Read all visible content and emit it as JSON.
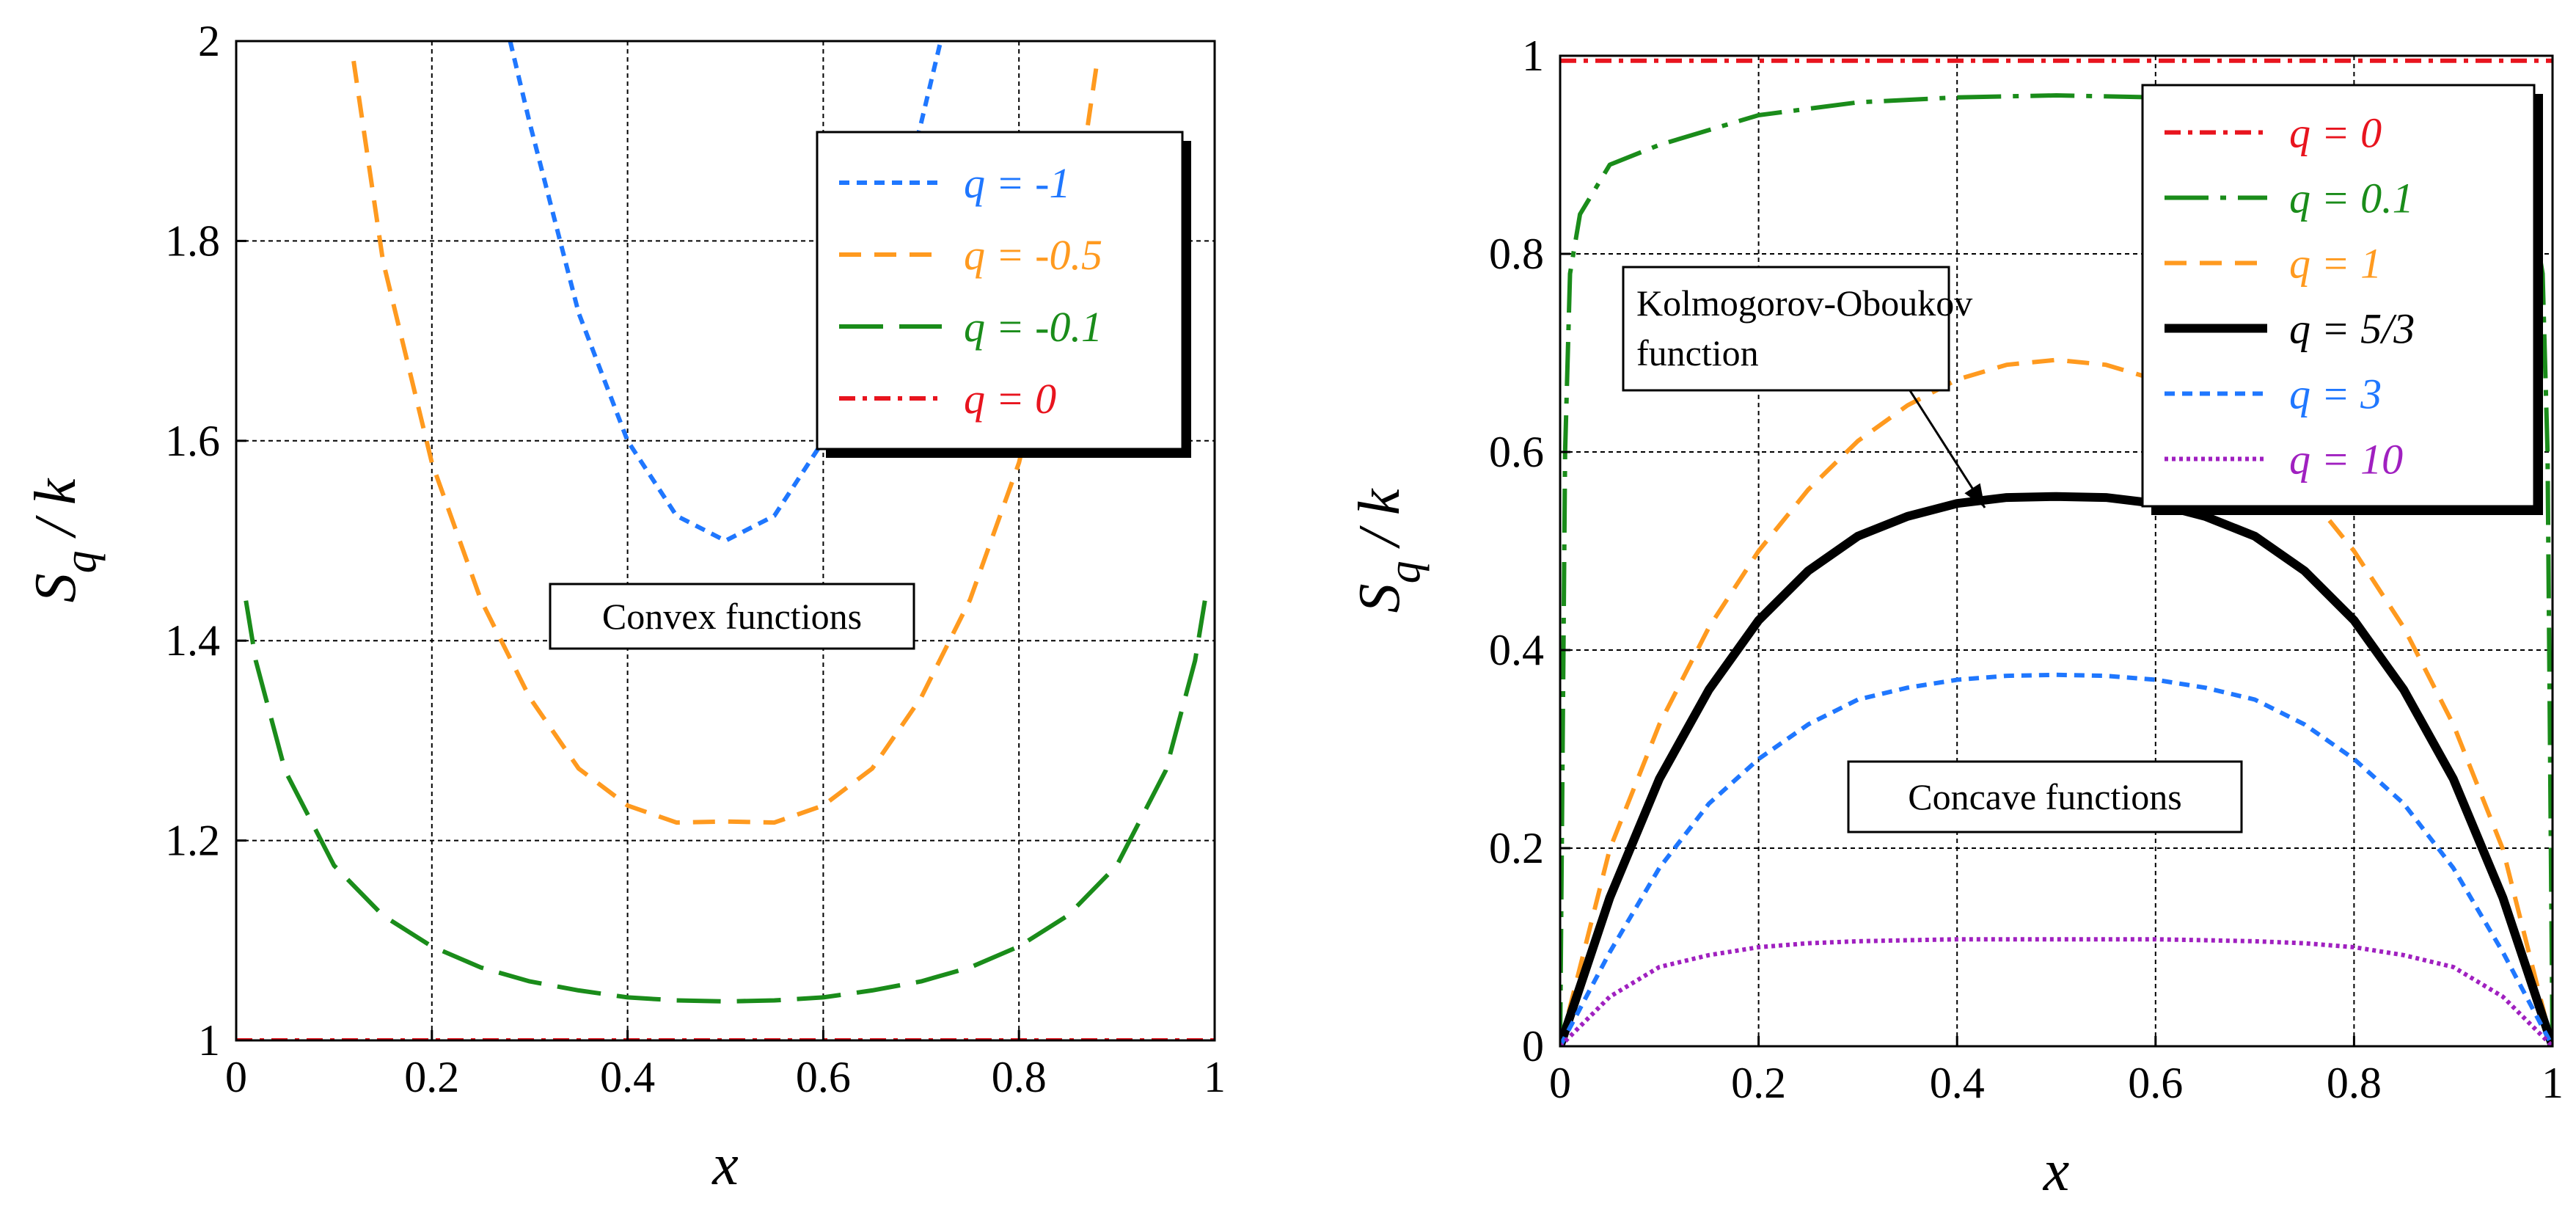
{
  "chart_data": [
    {
      "type": "line",
      "title": "",
      "xlabel": "x",
      "ylabel": {
        "main": "S",
        "sub": "q",
        "rest": " / k"
      },
      "xlim": [
        0,
        1
      ],
      "ylim": [
        1,
        2
      ],
      "x_ticks": [
        "0",
        "0.2",
        "0.4",
        "0.6",
        "0.8",
        "1"
      ],
      "y_ticks": [
        "1",
        "1.2",
        "1.4",
        "1.6",
        "1.8",
        "2"
      ],
      "grid": true,
      "legend_position": "top-right",
      "annotation": "Convex functions",
      "series": [
        {
          "name": "q = -1",
          "q": -1,
          "color": "#1f77ff",
          "dash": "short-dash",
          "points": [
            [
              0.28,
              2.0
            ],
            [
              0.3,
              1.918
            ],
            [
              0.35,
              1.728
            ],
            [
              0.4,
              1.6
            ],
            [
              0.45,
              1.525
            ],
            [
              0.5,
              1.5
            ],
            [
              0.55,
              1.525
            ],
            [
              0.6,
              1.6
            ],
            [
              0.65,
              1.728
            ],
            [
              0.7,
              1.918
            ],
            [
              0.72,
              2.0
            ]
          ]
        },
        {
          "name": "q = -0.5",
          "q": -0.5,
          "color": "#ff9a1f",
          "dash": "dash",
          "points": [
            [
              0.12,
              1.98
            ],
            [
              0.15,
              1.78
            ],
            [
              0.2,
              1.578
            ],
            [
              0.25,
              1.441
            ],
            [
              0.3,
              1.343
            ],
            [
              0.35,
              1.272
            ],
            [
              0.4,
              1.235
            ],
            [
              0.45,
              1.218
            ],
            [
              0.5,
              1.219
            ],
            [
              0.55,
              1.218
            ],
            [
              0.6,
              1.235
            ],
            [
              0.65,
              1.272
            ],
            [
              0.7,
              1.343
            ],
            [
              0.75,
              1.441
            ],
            [
              0.8,
              1.578
            ],
            [
              0.85,
              1.78
            ],
            [
              0.88,
              1.98
            ]
          ]
        },
        {
          "name": "q = -0.1",
          "q": -0.1,
          "color": "#1a8c1a",
          "dash": "long-dash",
          "points": [
            [
              0.01,
              1.44
            ],
            [
              0.02,
              1.38
            ],
            [
              0.05,
              1.27
            ],
            [
              0.1,
              1.175
            ],
            [
              0.15,
              1.125
            ],
            [
              0.2,
              1.094
            ],
            [
              0.25,
              1.073
            ],
            [
              0.3,
              1.059
            ],
            [
              0.35,
              1.05
            ],
            [
              0.4,
              1.043
            ],
            [
              0.45,
              1.04
            ],
            [
              0.5,
              1.039
            ],
            [
              0.55,
              1.04
            ],
            [
              0.6,
              1.043
            ],
            [
              0.65,
              1.05
            ],
            [
              0.7,
              1.059
            ],
            [
              0.75,
              1.073
            ],
            [
              0.8,
              1.094
            ],
            [
              0.85,
              1.125
            ],
            [
              0.9,
              1.175
            ],
            [
              0.95,
              1.27
            ],
            [
              0.98,
              1.38
            ],
            [
              0.99,
              1.44
            ]
          ]
        },
        {
          "name": "q = 0",
          "q": 0,
          "color": "#e8141e",
          "dash": "dash-dot",
          "points": [
            [
              0,
              1.0
            ],
            [
              1,
              1.0
            ]
          ]
        }
      ]
    },
    {
      "type": "line",
      "title": "",
      "xlabel": "x",
      "ylabel": {
        "main": "S",
        "sub": "q",
        "rest": " / k"
      },
      "xlim": [
        0,
        1
      ],
      "ylim": [
        0,
        1
      ],
      "x_ticks": [
        "0",
        "0.2",
        "0.4",
        "0.6",
        "0.8",
        "1"
      ],
      "y_ticks": [
        "0",
        "0.2",
        "0.4",
        "0.6",
        "0.8",
        "1"
      ],
      "grid": true,
      "legend_position": "top-right",
      "annotation": "Concave functions",
      "annotation_arrow": "Kolmogorov-Oboukov function",
      "series": [
        {
          "name": "q = 0",
          "q": 0,
          "color": "#e8141e",
          "dash": "dash-dot",
          "points": [
            [
              0,
              0.995
            ],
            [
              1,
              0.995
            ]
          ]
        },
        {
          "name": "q = 0.1",
          "q": 0.1,
          "color": "#1a8c1a",
          "dash": "long-dash-dot",
          "points": [
            [
              0.0,
              0.0
            ],
            [
              0.005,
              0.6
            ],
            [
              0.01,
              0.78
            ],
            [
              0.02,
              0.84
            ],
            [
              0.05,
              0.89
            ],
            [
              0.1,
              0.91
            ],
            [
              0.2,
              0.94
            ],
            [
              0.3,
              0.953
            ],
            [
              0.4,
              0.958
            ],
            [
              0.5,
              0.96
            ],
            [
              0.6,
              0.958
            ],
            [
              0.7,
              0.953
            ],
            [
              0.8,
              0.94
            ],
            [
              0.9,
              0.91
            ],
            [
              0.95,
              0.89
            ],
            [
              0.98,
              0.84
            ],
            [
              0.99,
              0.78
            ],
            [
              0.995,
              0.6
            ],
            [
              1.0,
              0.0
            ]
          ]
        },
        {
          "name": "q = 1",
          "q": 1,
          "color": "#ff9a1f",
          "dash": "dash",
          "points": [
            [
              0.0,
              0.0
            ],
            [
              0.05,
              0.199
            ],
            [
              0.1,
              0.325
            ],
            [
              0.15,
              0.423
            ],
            [
              0.2,
              0.5
            ],
            [
              0.25,
              0.562
            ],
            [
              0.3,
              0.611
            ],
            [
              0.35,
              0.647
            ],
            [
              0.4,
              0.673
            ],
            [
              0.45,
              0.688
            ],
            [
              0.5,
              0.693
            ],
            [
              0.55,
              0.688
            ],
            [
              0.6,
              0.673
            ],
            [
              0.65,
              0.647
            ],
            [
              0.7,
              0.611
            ],
            [
              0.75,
              0.562
            ],
            [
              0.8,
              0.5
            ],
            [
              0.85,
              0.423
            ],
            [
              0.9,
              0.325
            ],
            [
              0.95,
              0.199
            ],
            [
              1.0,
              0.0
            ]
          ]
        },
        {
          "name": "q = 5/3",
          "q": 1.6667,
          "color": "#000000",
          "dash": "solid",
          "points": [
            [
              0.0,
              0.0
            ],
            [
              0.05,
              0.15
            ],
            [
              0.1,
              0.27
            ],
            [
              0.15,
              0.36
            ],
            [
              0.2,
              0.43
            ],
            [
              0.25,
              0.48
            ],
            [
              0.3,
              0.515
            ],
            [
              0.35,
              0.535
            ],
            [
              0.4,
              0.548
            ],
            [
              0.45,
              0.554
            ],
            [
              0.5,
              0.555
            ],
            [
              0.55,
              0.554
            ],
            [
              0.6,
              0.548
            ],
            [
              0.65,
              0.535
            ],
            [
              0.7,
              0.515
            ],
            [
              0.75,
              0.48
            ],
            [
              0.8,
              0.43
            ],
            [
              0.85,
              0.36
            ],
            [
              0.9,
              0.27
            ],
            [
              0.95,
              0.15
            ],
            [
              1.0,
              0.0
            ]
          ]
        },
        {
          "name": "q = 3",
          "q": 3,
          "color": "#1f77ff",
          "dash": "short-dash",
          "points": [
            [
              0.0,
              0.0
            ],
            [
              0.05,
              0.095
            ],
            [
              0.1,
              0.18
            ],
            [
              0.15,
              0.245
            ],
            [
              0.2,
              0.29
            ],
            [
              0.25,
              0.325
            ],
            [
              0.3,
              0.35
            ],
            [
              0.35,
              0.362
            ],
            [
              0.4,
              0.37
            ],
            [
              0.45,
              0.374
            ],
            [
              0.5,
              0.375
            ],
            [
              0.55,
              0.374
            ],
            [
              0.6,
              0.37
            ],
            [
              0.65,
              0.362
            ],
            [
              0.7,
              0.35
            ],
            [
              0.75,
              0.325
            ],
            [
              0.8,
              0.29
            ],
            [
              0.85,
              0.245
            ],
            [
              0.9,
              0.18
            ],
            [
              0.95,
              0.095
            ],
            [
              1.0,
              0.0
            ]
          ]
        },
        {
          "name": "q = 10",
          "q": 10,
          "color": "#a020c0",
          "dash": "dot",
          "points": [
            [
              0.0,
              0.0
            ],
            [
              0.05,
              0.05
            ],
            [
              0.1,
              0.08
            ],
            [
              0.15,
              0.092
            ],
            [
              0.2,
              0.1
            ],
            [
              0.25,
              0.104
            ],
            [
              0.3,
              0.106
            ],
            [
              0.35,
              0.107
            ],
            [
              0.4,
              0.108
            ],
            [
              0.45,
              0.108
            ],
            [
              0.5,
              0.108
            ],
            [
              0.55,
              0.108
            ],
            [
              0.6,
              0.108
            ],
            [
              0.65,
              0.107
            ],
            [
              0.7,
              0.106
            ],
            [
              0.75,
              0.104
            ],
            [
              0.8,
              0.1
            ],
            [
              0.85,
              0.092
            ],
            [
              0.9,
              0.08
            ],
            [
              0.95,
              0.05
            ],
            [
              1.0,
              0.0
            ]
          ]
        }
      ]
    }
  ]
}
